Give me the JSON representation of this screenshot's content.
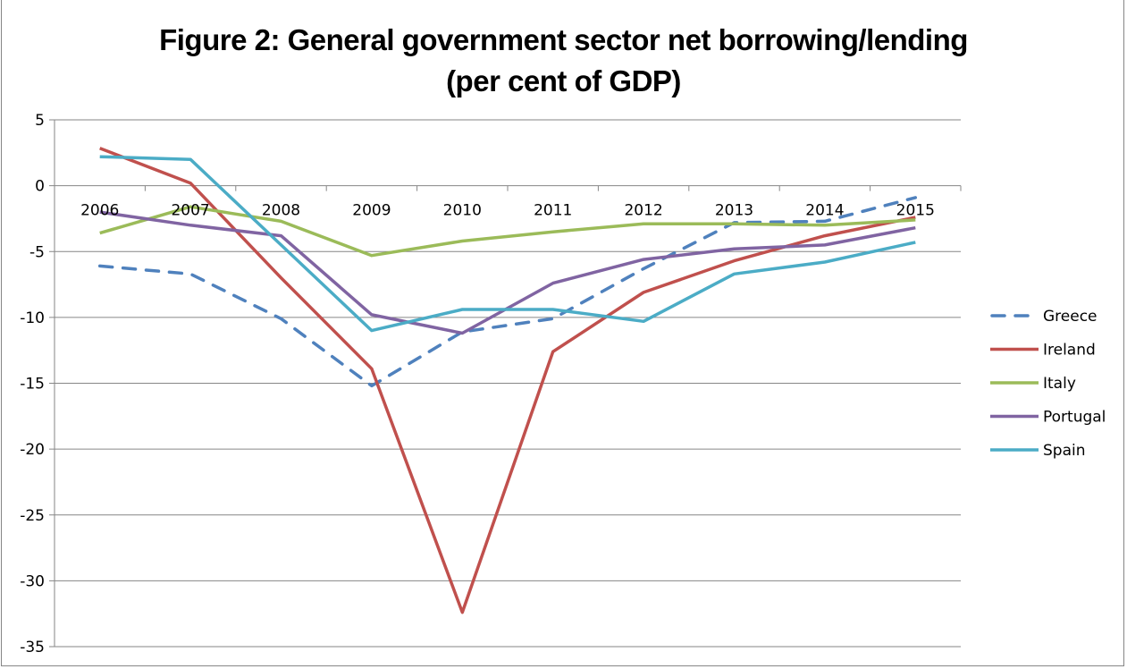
{
  "chart_data": {
    "type": "line",
    "title": "Figure 2: General government sector net borrowing/lending",
    "subtitle": "(per cent of GDP)",
    "xlabel": "",
    "ylabel": "",
    "categories": [
      "2006",
      "2007",
      "2008",
      "2009",
      "2010",
      "2011",
      "2012",
      "2013",
      "2014",
      "2015"
    ],
    "ylim": [
      -35,
      5
    ],
    "yticks": [
      5,
      0,
      -5,
      -10,
      -15,
      -20,
      -25,
      -30,
      -35
    ],
    "ytick_labels": [
      "5",
      "0",
      "-5",
      "-10",
      "-15",
      "-20",
      "-25",
      "-30",
      "-35"
    ],
    "grid": true,
    "legend_position": "right",
    "series": [
      {
        "name": "Greece",
        "color": "#4F81BD",
        "dash": true,
        "values": [
          -6.1,
          -6.7,
          -10.1,
          -15.2,
          -11.1,
          -10.1,
          -6.3,
          -2.8,
          -2.7,
          -0.9
        ]
      },
      {
        "name": "Ireland",
        "color": "#C0504D",
        "dash": false,
        "values": [
          2.85,
          0.2,
          -7.0,
          -13.9,
          -32.4,
          -12.6,
          -8.1,
          -5.7,
          -3.8,
          -2.4
        ]
      },
      {
        "name": "Italy",
        "color": "#9BBB59",
        "dash": false,
        "values": [
          -3.6,
          -1.6,
          -2.7,
          -5.3,
          -4.2,
          -3.5,
          -2.9,
          -2.9,
          -3.0,
          -2.6
        ]
      },
      {
        "name": "Portugal",
        "color": "#8064A2",
        "dash": false,
        "values": [
          -2.0,
          -3.0,
          -3.8,
          -9.8,
          -11.2,
          -7.4,
          -5.6,
          -4.8,
          -4.5,
          -3.2
        ]
      },
      {
        "name": "Spain",
        "color": "#4BACC6",
        "dash": false,
        "values": [
          2.2,
          2.0,
          -4.5,
          -11.0,
          -9.4,
          -9.4,
          -10.3,
          -6.7,
          -5.8,
          -4.3
        ]
      }
    ]
  }
}
